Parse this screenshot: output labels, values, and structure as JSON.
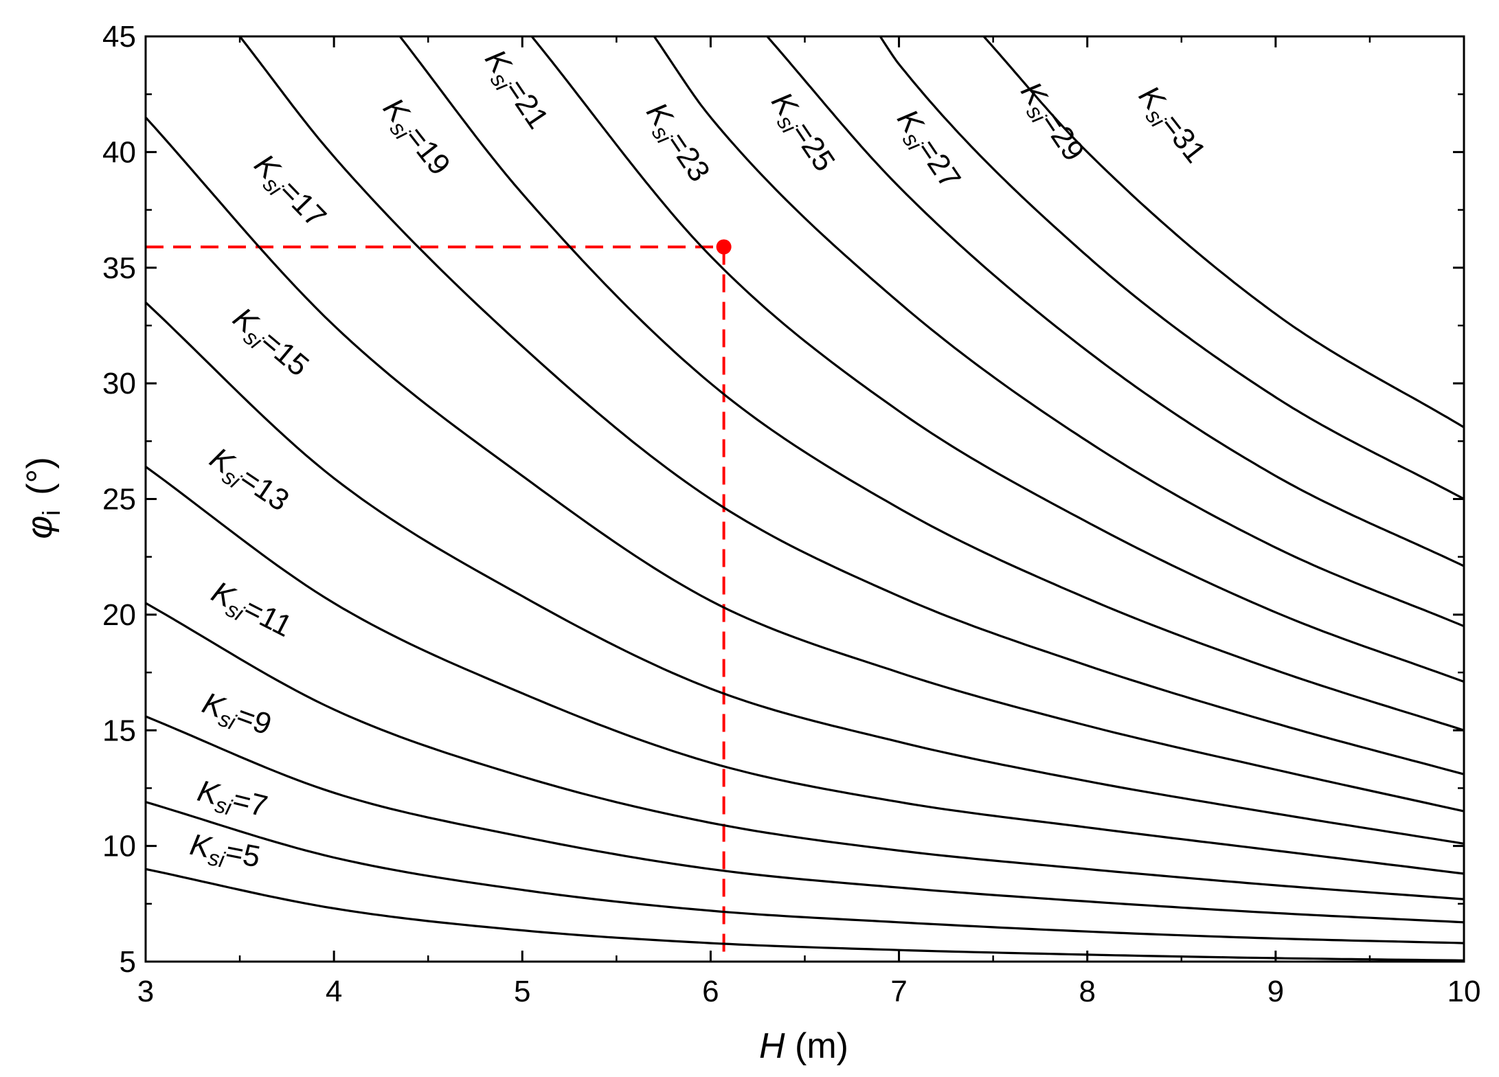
{
  "chart_data": {
    "type": "line",
    "xlabel": {
      "symbol": "H",
      "unit": " (m)"
    },
    "ylabel": {
      "symbol": "φ",
      "subscript": "i",
      "unit": "(°)"
    },
    "xlim": [
      3,
      10
    ],
    "ylim": [
      5,
      45
    ],
    "xticks": [
      3,
      4,
      5,
      6,
      7,
      8,
      9,
      10
    ],
    "yticks": [
      5,
      10,
      15,
      20,
      25,
      30,
      35,
      40,
      45
    ],
    "grid": false,
    "curve_label_prefix": "K",
    "curve_label_subscript": "si",
    "curve_label_sep": "=",
    "series": [
      {
        "name": "5",
        "x": [
          3,
          4,
          5,
          6,
          7,
          8,
          9,
          10
        ],
        "y": [
          9.0,
          7.3,
          6.35,
          5.8,
          5.5,
          5.3,
          5.15,
          5.05
        ]
      },
      {
        "name": "7",
        "x": [
          3,
          4,
          5,
          6,
          7,
          8,
          9,
          10
        ],
        "y": [
          11.9,
          9.5,
          8.1,
          7.2,
          6.7,
          6.3,
          6.0,
          5.8
        ]
      },
      {
        "name": "9",
        "x": [
          3,
          4,
          5,
          6,
          7,
          8,
          9,
          10
        ],
        "y": [
          15.6,
          12.3,
          10.4,
          9.0,
          8.2,
          7.6,
          7.1,
          6.7
        ]
      },
      {
        "name": "11",
        "x": [
          3,
          4,
          5,
          6,
          7,
          8,
          9,
          10
        ],
        "y": [
          20.5,
          15.9,
          13.0,
          11.0,
          9.8,
          9.0,
          8.3,
          7.7
        ]
      },
      {
        "name": "13",
        "x": [
          3,
          4,
          5,
          6,
          7,
          8,
          9,
          10
        ],
        "y": [
          26.4,
          20.5,
          16.6,
          13.6,
          11.9,
          10.8,
          9.8,
          8.8
        ]
      },
      {
        "name": "15",
        "x": [
          3,
          4,
          5,
          6,
          7,
          8,
          9,
          10
        ],
        "y": [
          33.5,
          25.9,
          20.8,
          16.8,
          14.5,
          12.8,
          11.4,
          10.1
        ]
      },
      {
        "name": "17",
        "x": [
          3,
          4,
          5,
          6,
          7,
          8,
          9,
          10
        ],
        "y": [
          41.5,
          32.5,
          26.0,
          20.6,
          17.5,
          15.2,
          13.3,
          11.5
        ]
      },
      {
        "name": "19",
        "x": [
          3.5,
          4,
          5,
          6,
          7,
          8,
          9,
          10
        ],
        "y": [
          45,
          39.8,
          31.6,
          25.0,
          20.8,
          17.8,
          15.3,
          13.1
        ]
      },
      {
        "name": "21",
        "x": [
          4.35,
          5,
          6,
          7,
          8,
          9,
          10
        ],
        "y": [
          45,
          38.2,
          30.0,
          24.6,
          20.7,
          17.6,
          15.0
        ]
      },
      {
        "name": "23",
        "x": [
          5.05,
          6,
          7,
          8,
          9,
          10
        ],
        "y": [
          45,
          35.5,
          28.8,
          24.0,
          20.1,
          17.1
        ]
      },
      {
        "name": "25",
        "x": [
          5.7,
          6,
          7,
          8,
          9,
          10
        ],
        "y": [
          45,
          41.5,
          33.5,
          27.5,
          22.9,
          19.5
        ]
      },
      {
        "name": "27",
        "x": [
          6.3,
          7,
          8,
          9,
          10
        ],
        "y": [
          45,
          38.5,
          31.4,
          26.0,
          22.1
        ]
      },
      {
        "name": "29",
        "x": [
          6.9,
          7,
          8,
          9,
          10
        ],
        "y": [
          45,
          43.8,
          35.5,
          29.4,
          25.0
        ]
      },
      {
        "name": "31",
        "x": [
          7.45,
          8,
          9,
          10
        ],
        "y": [
          45,
          40.0,
          33.0,
          28.1
        ]
      }
    ],
    "marked_point": {
      "x": 6.07,
      "y": 35.9,
      "color": "#ff0000"
    },
    "line_color": "#000000",
    "marker_color": "#ff0000"
  }
}
